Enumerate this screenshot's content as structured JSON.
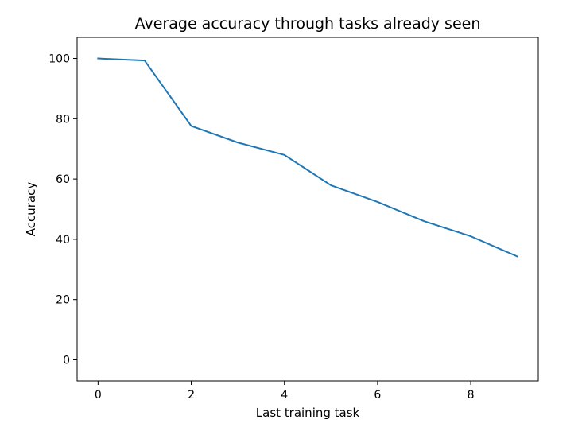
{
  "chart_data": {
    "type": "line",
    "title": "Average accuracy through tasks already seen",
    "xlabel": "Last training task",
    "ylabel": "Accuracy",
    "xlim": [
      -0.45,
      9.45
    ],
    "ylim": [
      -7,
      107
    ],
    "xticks": [
      0,
      2,
      4,
      6,
      8
    ],
    "yticks": [
      0,
      20,
      40,
      60,
      80,
      100
    ],
    "xtick_labels": [
      "0",
      "2",
      "4",
      "6",
      "8"
    ],
    "ytick_labels": [
      "0",
      "20",
      "40",
      "60",
      "80",
      "100"
    ],
    "grid": false,
    "series": [
      {
        "name": "Average accuracy",
        "color": "#1f77b4",
        "x": [
          0,
          1,
          2,
          3,
          4,
          5,
          6,
          7,
          8,
          9
        ],
        "values": [
          100,
          99.3,
          77.6,
          72.1,
          68.0,
          57.9,
          52.4,
          46.0,
          41.0,
          34.3
        ]
      }
    ]
  }
}
